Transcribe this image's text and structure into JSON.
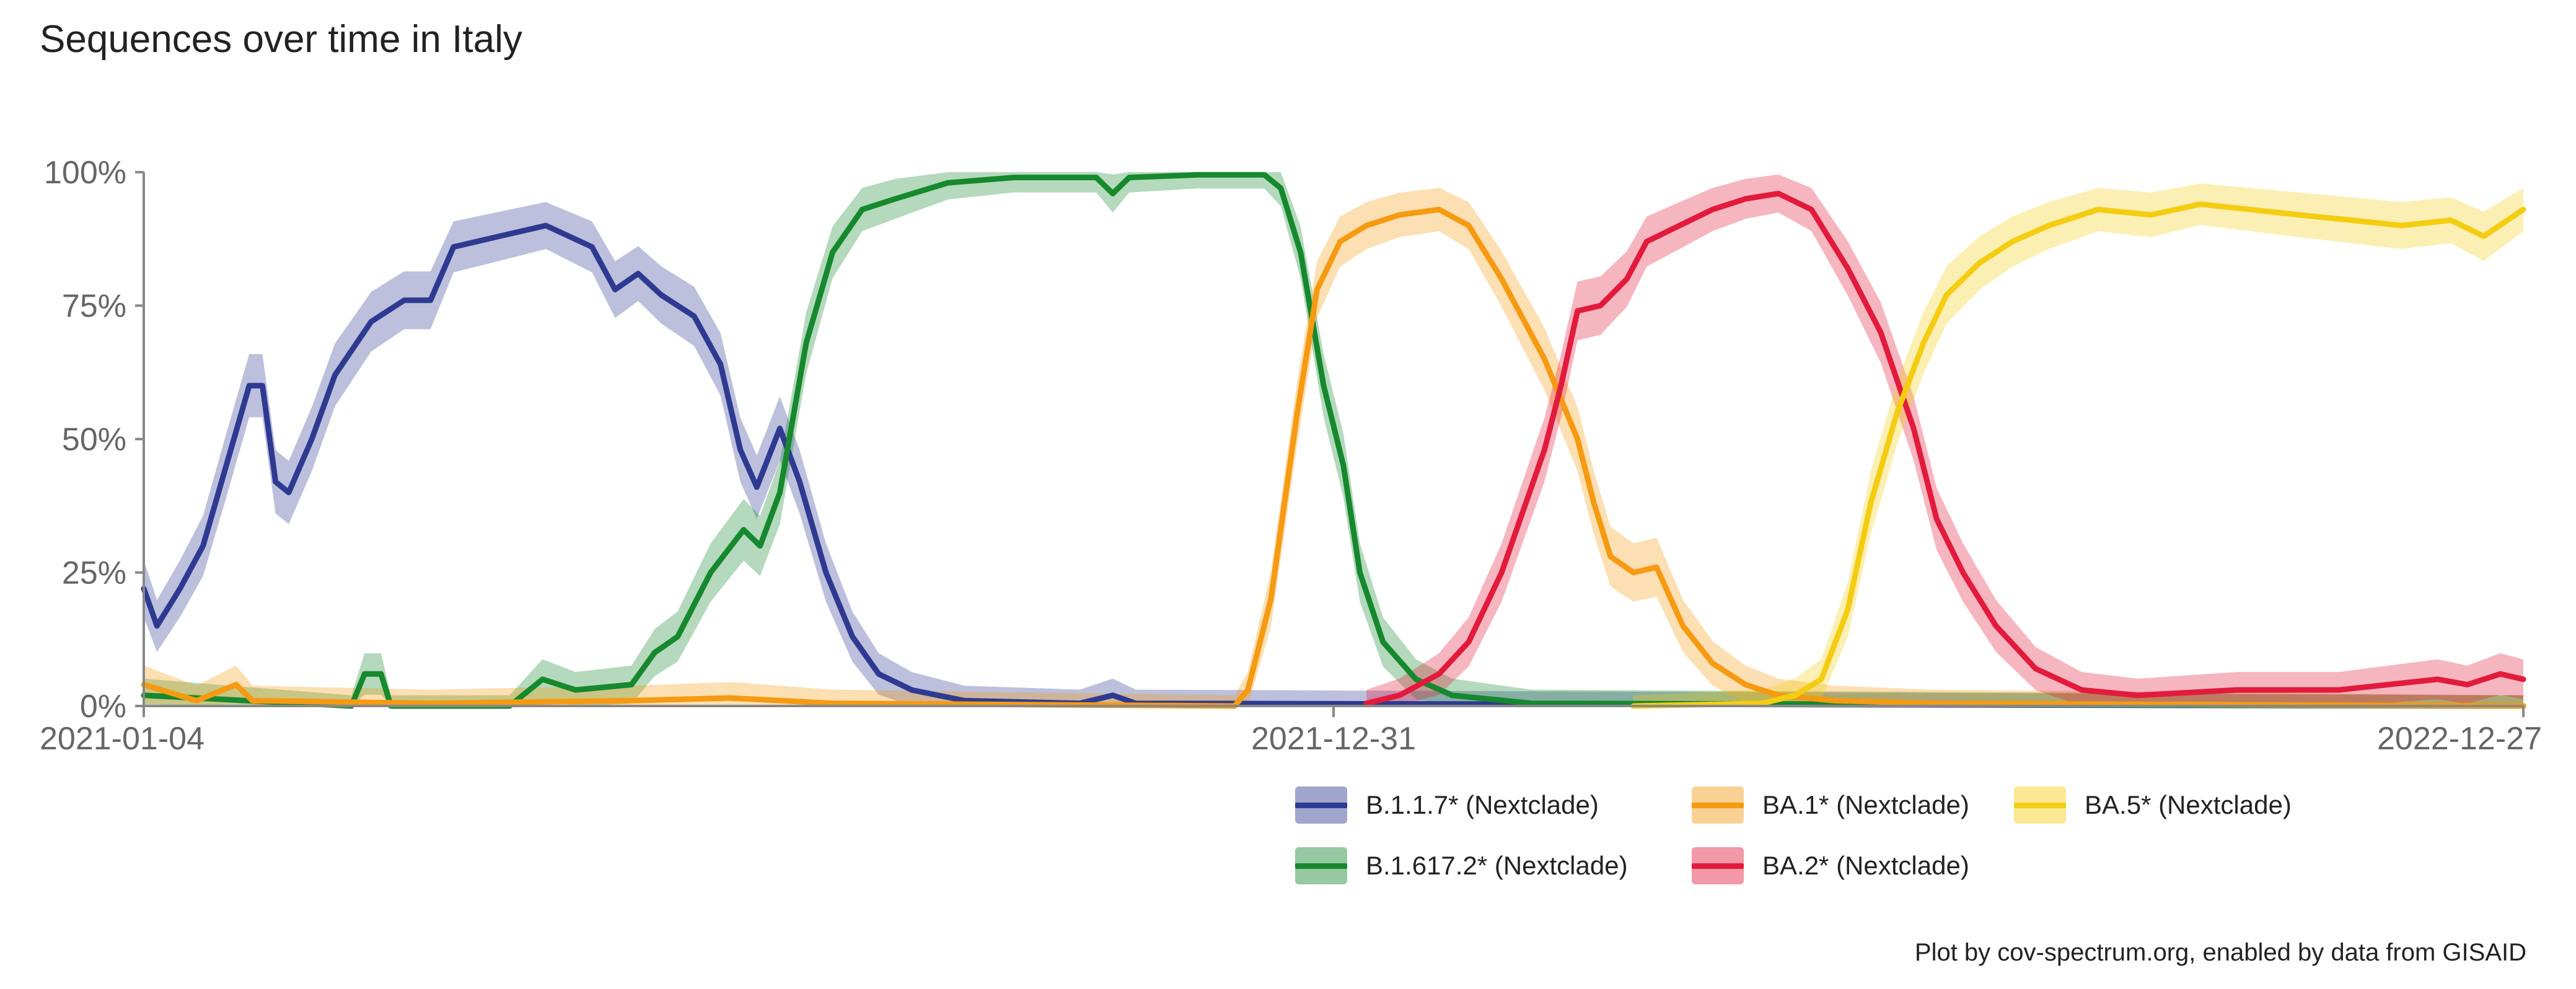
{
  "title": "Sequences over time in Italy",
  "credit": "Plot by cov-spectrum.org, enabled by data from GISAID",
  "chart_data": {
    "type": "line",
    "x_start": "2021-01-04",
    "x_end": "2022-12-27",
    "x_ticks": [
      "2021-01-04",
      "2021-12-31",
      "2022-12-27"
    ],
    "y_ticks": [
      "0%",
      "25%",
      "50%",
      "75%",
      "100%"
    ],
    "ylim": [
      0,
      100
    ],
    "grid": false,
    "legend_position": "bottom-right",
    "series": [
      {
        "name": "B.1.1.7* (Nextclade)",
        "color": "#2e3a91",
        "points": [
          [
            "2021-01-04",
            22
          ],
          [
            "2021-01-08",
            15
          ],
          [
            "2021-01-15",
            22
          ],
          [
            "2021-01-22",
            30
          ],
          [
            "2021-01-29",
            45
          ],
          [
            "2021-02-05",
            60
          ],
          [
            "2021-02-09",
            60
          ],
          [
            "2021-02-13",
            42
          ],
          [
            "2021-02-17",
            40
          ],
          [
            "2021-02-24",
            50
          ],
          [
            "2021-03-03",
            62
          ],
          [
            "2021-03-14",
            72
          ],
          [
            "2021-03-24",
            76
          ],
          [
            "2021-04-01",
            76
          ],
          [
            "2021-04-08",
            86
          ],
          [
            "2021-04-22",
            88
          ],
          [
            "2021-05-06",
            90
          ],
          [
            "2021-05-20",
            86
          ],
          [
            "2021-05-27",
            78
          ],
          [
            "2021-06-03",
            81
          ],
          [
            "2021-06-10",
            77
          ],
          [
            "2021-06-20",
            73
          ],
          [
            "2021-06-28",
            64
          ],
          [
            "2021-07-04",
            48
          ],
          [
            "2021-07-09",
            41
          ],
          [
            "2021-07-16",
            52
          ],
          [
            "2021-07-22",
            42
          ],
          [
            "2021-07-30",
            25
          ],
          [
            "2021-08-07",
            13
          ],
          [
            "2021-08-15",
            6
          ],
          [
            "2021-08-25",
            3
          ],
          [
            "2021-09-10",
            1
          ],
          [
            "2021-10-15",
            0.5
          ],
          [
            "2021-10-25",
            2
          ],
          [
            "2021-11-01",
            0.5
          ],
          [
            "2022-12-27",
            0
          ]
        ]
      },
      {
        "name": "B.1.617.2* (Nextclade)",
        "color": "#16882e",
        "points": [
          [
            "2021-01-04",
            2
          ],
          [
            "2021-03-08",
            0
          ],
          [
            "2021-03-12",
            6
          ],
          [
            "2021-03-17",
            6
          ],
          [
            "2021-03-20",
            0
          ],
          [
            "2021-04-25",
            0
          ],
          [
            "2021-05-05",
            5
          ],
          [
            "2021-05-15",
            3
          ],
          [
            "2021-06-01",
            4
          ],
          [
            "2021-06-08",
            10
          ],
          [
            "2021-06-15",
            13
          ],
          [
            "2021-06-25",
            25
          ],
          [
            "2021-07-05",
            33
          ],
          [
            "2021-07-10",
            30
          ],
          [
            "2021-07-16",
            40
          ],
          [
            "2021-07-24",
            68
          ],
          [
            "2021-08-01",
            85
          ],
          [
            "2021-08-10",
            93
          ],
          [
            "2021-08-20",
            95
          ],
          [
            "2021-09-05",
            98
          ],
          [
            "2021-09-25",
            99
          ],
          [
            "2021-10-20",
            99
          ],
          [
            "2021-10-25",
            96
          ],
          [
            "2021-10-30",
            99
          ],
          [
            "2021-11-20",
            99.5
          ],
          [
            "2021-12-10",
            99.5
          ],
          [
            "2021-12-15",
            97
          ],
          [
            "2021-12-21",
            85
          ],
          [
            "2021-12-28",
            60
          ],
          [
            "2022-01-03",
            45
          ],
          [
            "2022-01-08",
            25
          ],
          [
            "2022-01-15",
            12
          ],
          [
            "2022-01-25",
            5
          ],
          [
            "2022-02-05",
            2
          ],
          [
            "2022-03-01",
            0.5
          ],
          [
            "2022-12-27",
            0
          ]
        ]
      },
      {
        "name": "BA.1* (Nextclade)",
        "color": "#f59a11",
        "points": [
          [
            "2021-01-04",
            4
          ],
          [
            "2021-01-20",
            1
          ],
          [
            "2021-02-01",
            4
          ],
          [
            "2021-02-06",
            1
          ],
          [
            "2021-04-01",
            0.5
          ],
          [
            "2021-06-01",
            1
          ],
          [
            "2021-07-01",
            1.5
          ],
          [
            "2021-08-01",
            0.5
          ],
          [
            "2021-12-01",
            0
          ],
          [
            "2021-12-05",
            3
          ],
          [
            "2021-12-12",
            20
          ],
          [
            "2021-12-20",
            55
          ],
          [
            "2021-12-26",
            78
          ],
          [
            "2022-01-02",
            87
          ],
          [
            "2022-01-10",
            90
          ],
          [
            "2022-01-20",
            92
          ],
          [
            "2022-02-01",
            93
          ],
          [
            "2022-02-10",
            90
          ],
          [
            "2022-02-20",
            80
          ],
          [
            "2022-03-05",
            65
          ],
          [
            "2022-03-15",
            50
          ],
          [
            "2022-03-20",
            38
          ],
          [
            "2022-03-25",
            28
          ],
          [
            "2022-04-01",
            25
          ],
          [
            "2022-04-08",
            26
          ],
          [
            "2022-04-16",
            15
          ],
          [
            "2022-04-25",
            8
          ],
          [
            "2022-05-05",
            4
          ],
          [
            "2022-05-15",
            2
          ],
          [
            "2022-06-01",
            1
          ],
          [
            "2022-07-01",
            0.5
          ],
          [
            "2022-12-27",
            0
          ]
        ]
      },
      {
        "name": "BA.2* (Nextclade)",
        "color": "#e21b3c",
        "points": [
          [
            "2022-01-10",
            0.5
          ],
          [
            "2022-01-20",
            2
          ],
          [
            "2022-02-01",
            6
          ],
          [
            "2022-02-10",
            12
          ],
          [
            "2022-02-20",
            25
          ],
          [
            "2022-03-05",
            48
          ],
          [
            "2022-03-10",
            60
          ],
          [
            "2022-03-15",
            74
          ],
          [
            "2022-03-22",
            75
          ],
          [
            "2022-03-30",
            80
          ],
          [
            "2022-04-05",
            87
          ],
          [
            "2022-04-15",
            90
          ],
          [
            "2022-04-25",
            93
          ],
          [
            "2022-05-05",
            95
          ],
          [
            "2022-05-15",
            96
          ],
          [
            "2022-05-25",
            93
          ],
          [
            "2022-06-05",
            82
          ],
          [
            "2022-06-15",
            70
          ],
          [
            "2022-06-25",
            52
          ],
          [
            "2022-07-02",
            35
          ],
          [
            "2022-07-10",
            25
          ],
          [
            "2022-07-20",
            15
          ],
          [
            "2022-08-01",
            7
          ],
          [
            "2022-08-15",
            3
          ],
          [
            "2022-09-01",
            2
          ],
          [
            "2022-10-01",
            3
          ],
          [
            "2022-11-01",
            3
          ],
          [
            "2022-12-01",
            5
          ],
          [
            "2022-12-10",
            4
          ],
          [
            "2022-12-20",
            6
          ],
          [
            "2022-12-27",
            5
          ]
        ]
      },
      {
        "name": "BA.5* (Nextclade)",
        "color": "#f4cd12",
        "points": [
          [
            "2022-04-01",
            0
          ],
          [
            "2022-05-10",
            0.5
          ],
          [
            "2022-05-20",
            2
          ],
          [
            "2022-05-28",
            5
          ],
          [
            "2022-06-05",
            18
          ],
          [
            "2022-06-12",
            38
          ],
          [
            "2022-06-20",
            55
          ],
          [
            "2022-06-28",
            68
          ],
          [
            "2022-07-05",
            77
          ],
          [
            "2022-07-15",
            83
          ],
          [
            "2022-07-25",
            87
          ],
          [
            "2022-08-05",
            90
          ],
          [
            "2022-08-20",
            93
          ],
          [
            "2022-09-05",
            92
          ],
          [
            "2022-09-20",
            94
          ],
          [
            "2022-10-05",
            93
          ],
          [
            "2022-10-20",
            92
          ],
          [
            "2022-11-05",
            91
          ],
          [
            "2022-11-20",
            90
          ],
          [
            "2022-12-05",
            91
          ],
          [
            "2022-12-15",
            88
          ],
          [
            "2022-12-27",
            93
          ]
        ]
      }
    ]
  }
}
